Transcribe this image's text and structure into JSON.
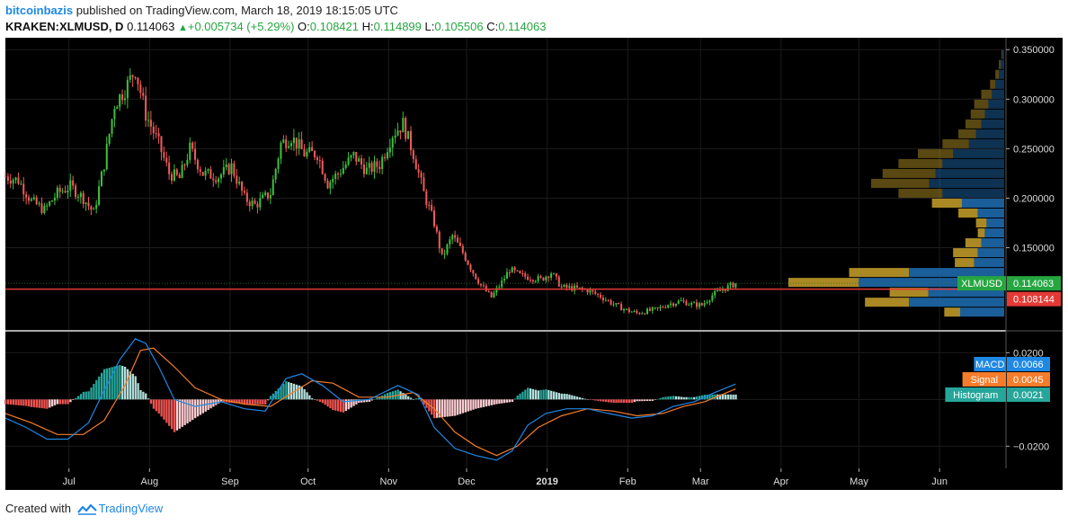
{
  "header": {
    "author": "bitcoinbazis",
    "published_text": "published on TradingView.com, March 18, 2019 18:15:05 UTC",
    "symbol": "KRAKEN:XLMUSD, D",
    "last": "0.114063",
    "change_arrow": "▲",
    "change": "+0.005734 (+5.29%)",
    "o_label": "O:",
    "o_value": "0.108421",
    "h_label": "H:",
    "h_value": "0.114899",
    "l_label": "L:",
    "l_value": "0.105506",
    "c_label": "C:",
    "c_value": "0.114063"
  },
  "footer": {
    "created_with": "Created with",
    "brand": "TradingView"
  },
  "colors": {
    "background": "#000000",
    "up": "#3fbf3f",
    "down": "#f05a5a",
    "macd_line": "#1e88e5",
    "signal_line": "#f57c2a",
    "hist_pos": "#26a69a",
    "hist_pos_light": "#b2dfdb",
    "hist_neg": "#ef5350",
    "hist_neg_light": "#ffcdd2",
    "vp_up": "#c8a02a",
    "vp_down": "#1f6fb5",
    "red_line": "#e53935",
    "price_tag": "#26a641"
  },
  "chart_data": {
    "type": "candlestick",
    "symbol": "KRAKEN:XLMUSD",
    "interval": "D",
    "x_axis": {
      "tick_labels": [
        "Jul",
        "Aug",
        "Sep",
        "Oct",
        "Nov",
        "Dec",
        "2019",
        "Feb",
        "Mar",
        "Apr",
        "May",
        "Jun"
      ],
      "range": [
        "2018-06-10",
        "2019-06-30"
      ]
    },
    "price_axis": {
      "ticks": [
        0.35,
        0.3,
        0.25,
        0.2,
        0.15
      ],
      "tick_labels": [
        "0.350000",
        "0.300000",
        "0.250000",
        "0.200000",
        "0.150000"
      ],
      "range": [
        0.067,
        0.362
      ]
    },
    "last_price_tag": {
      "label": "XLMUSD",
      "value": "0.114063",
      "price": 0.114063
    },
    "red_line_tag": {
      "value": "0.108144",
      "price": 0.108144
    },
    "price_path": {
      "description": "approximate daily close path",
      "points": [
        [
          "2018-06-10",
          0.222
        ],
        [
          "2018-06-15",
          0.218
        ],
        [
          "2018-06-20",
          0.197
        ],
        [
          "2018-06-25",
          0.188
        ],
        [
          "2018-06-30",
          0.205
        ],
        [
          "2018-07-05",
          0.212
        ],
        [
          "2018-07-10",
          0.2
        ],
        [
          "2018-07-14",
          0.185
        ],
        [
          "2018-07-18",
          0.235
        ],
        [
          "2018-07-22",
          0.295
        ],
        [
          "2018-07-26",
          0.31
        ],
        [
          "2018-07-30",
          0.33
        ],
        [
          "2018-08-03",
          0.285
        ],
        [
          "2018-08-08",
          0.255
        ],
        [
          "2018-08-12",
          0.225
        ],
        [
          "2018-08-16",
          0.22
        ],
        [
          "2018-08-20",
          0.25
        ],
        [
          "2018-08-25",
          0.225
        ],
        [
          "2018-08-31",
          0.222
        ],
        [
          "2018-09-05",
          0.232
        ],
        [
          "2018-09-10",
          0.2
        ],
        [
          "2018-09-14",
          0.193
        ],
        [
          "2018-09-20",
          0.205
        ],
        [
          "2018-09-24",
          0.255
        ],
        [
          "2018-09-28",
          0.262
        ],
        [
          "2018-10-03",
          0.245
        ],
        [
          "2018-10-08",
          0.245
        ],
        [
          "2018-10-12",
          0.215
        ],
        [
          "2018-10-16",
          0.225
        ],
        [
          "2018-10-22",
          0.243
        ],
        [
          "2018-10-27",
          0.228
        ],
        [
          "2018-11-01",
          0.234
        ],
        [
          "2018-11-06",
          0.265
        ],
        [
          "2018-11-10",
          0.275
        ],
        [
          "2018-11-14",
          0.245
        ],
        [
          "2018-11-18",
          0.205
        ],
        [
          "2018-11-22",
          0.175
        ],
        [
          "2018-11-25",
          0.14
        ],
        [
          "2018-11-29",
          0.162
        ],
        [
          "2018-12-03",
          0.145
        ],
        [
          "2018-12-07",
          0.125
        ],
        [
          "2018-12-10",
          0.112
        ],
        [
          "2018-12-14",
          0.1
        ],
        [
          "2018-12-18",
          0.115
        ],
        [
          "2018-12-21",
          0.128
        ],
        [
          "2018-12-25",
          0.122
        ],
        [
          "2018-12-29",
          0.12
        ],
        [
          "2019-01-02",
          0.118
        ],
        [
          "2019-01-06",
          0.125
        ],
        [
          "2019-01-10",
          0.11
        ],
        [
          "2019-01-15",
          0.109
        ],
        [
          "2019-01-20",
          0.107
        ],
        [
          "2019-01-25",
          0.101
        ],
        [
          "2019-01-30",
          0.093
        ],
        [
          "2019-02-04",
          0.087
        ],
        [
          "2019-02-08",
          0.084
        ],
        [
          "2019-02-12",
          0.086
        ],
        [
          "2019-02-16",
          0.088
        ],
        [
          "2019-02-20",
          0.093
        ],
        [
          "2019-02-25",
          0.096
        ],
        [
          "2019-03-01",
          0.093
        ],
        [
          "2019-03-05",
          0.092
        ],
        [
          "2019-03-09",
          0.102
        ],
        [
          "2019-03-13",
          0.108
        ],
        [
          "2019-03-18",
          0.114
        ]
      ]
    },
    "volume_profile": {
      "description": "approximate horizontal volume profile per price row (up / down share)",
      "rows": [
        {
          "price": 0.345,
          "up": 1,
          "down": 2
        },
        {
          "price": 0.335,
          "up": 2,
          "down": 4
        },
        {
          "price": 0.325,
          "up": 4,
          "down": 6
        },
        {
          "price": 0.315,
          "up": 6,
          "down": 10
        },
        {
          "price": 0.305,
          "up": 12,
          "down": 14
        },
        {
          "price": 0.295,
          "up": 16,
          "down": 18
        },
        {
          "price": 0.285,
          "up": 16,
          "down": 22
        },
        {
          "price": 0.275,
          "up": 18,
          "down": 26
        },
        {
          "price": 0.265,
          "up": 20,
          "down": 32
        },
        {
          "price": 0.255,
          "up": 30,
          "down": 40
        },
        {
          "price": 0.245,
          "up": 40,
          "down": 58
        },
        {
          "price": 0.235,
          "up": 50,
          "down": 70
        },
        {
          "price": 0.225,
          "up": 60,
          "down": 78
        },
        {
          "price": 0.215,
          "up": 66,
          "down": 85
        },
        {
          "price": 0.205,
          "up": 50,
          "down": 70
        },
        {
          "price": 0.195,
          "up": 34,
          "down": 48
        },
        {
          "price": 0.185,
          "up": 22,
          "down": 30
        },
        {
          "price": 0.175,
          "up": 12,
          "down": 20
        },
        {
          "price": 0.165,
          "up": 8,
          "down": 22
        },
        {
          "price": 0.155,
          "up": 18,
          "down": 26
        },
        {
          "price": 0.145,
          "up": 28,
          "down": 30
        },
        {
          "price": 0.135,
          "up": 22,
          "down": 34
        },
        {
          "price": 0.125,
          "up": 68,
          "down": 108
        },
        {
          "price": 0.115,
          "up": 80,
          "down": 165
        },
        {
          "price": 0.105,
          "up": 44,
          "down": 86
        },
        {
          "price": 0.095,
          "up": 50,
          "down": 108
        },
        {
          "price": 0.085,
          "up": 18,
          "down": 50
        }
      ]
    },
    "macd": {
      "labels": {
        "macd": "MACD",
        "signal": "Signal",
        "histogram": "Histogram"
      },
      "values": {
        "macd": "0.0066",
        "signal": "0.0045",
        "histogram": "0.0021"
      },
      "axis_ticks": [
        0.02,
        -0.02
      ],
      "axis_tick_labels": [
        "0.0200",
        "−0.0200"
      ],
      "range": [
        -0.0295,
        0.029
      ],
      "macd_path": [
        [
          "2018-06-10",
          -0.008
        ],
        [
          "2018-06-18",
          -0.012
        ],
        [
          "2018-06-26",
          -0.017
        ],
        [
          "2018-07-04",
          -0.017
        ],
        [
          "2018-07-12",
          -0.01
        ],
        [
          "2018-07-18",
          0.004
        ],
        [
          "2018-07-24",
          0.017
        ],
        [
          "2018-07-30",
          0.026
        ],
        [
          "2018-08-03",
          0.024
        ],
        [
          "2018-08-08",
          0.014
        ],
        [
          "2018-08-14",
          0.0
        ],
        [
          "2018-08-22",
          -0.003
        ],
        [
          "2018-09-01",
          -0.001
        ],
        [
          "2018-09-10",
          -0.004
        ],
        [
          "2018-09-18",
          -0.005
        ],
        [
          "2018-09-26",
          0.009
        ],
        [
          "2018-10-02",
          0.011
        ],
        [
          "2018-10-10",
          0.006
        ],
        [
          "2018-10-18",
          -0.001
        ],
        [
          "2018-10-28",
          0.0
        ],
        [
          "2018-11-08",
          0.006
        ],
        [
          "2018-11-16",
          0.002
        ],
        [
          "2018-11-22",
          -0.012
        ],
        [
          "2018-11-30",
          -0.021
        ],
        [
          "2018-12-08",
          -0.024
        ],
        [
          "2018-12-16",
          -0.026
        ],
        [
          "2018-12-22",
          -0.022
        ],
        [
          "2018-12-28",
          -0.011
        ],
        [
          "2019-01-04",
          -0.006
        ],
        [
          "2019-01-12",
          -0.004
        ],
        [
          "2019-01-20",
          -0.004
        ],
        [
          "2019-01-28",
          -0.006
        ],
        [
          "2019-02-06",
          -0.008
        ],
        [
          "2019-02-14",
          -0.007
        ],
        [
          "2019-02-22",
          -0.003
        ],
        [
          "2019-03-02",
          -0.001
        ],
        [
          "2019-03-10",
          0.003
        ],
        [
          "2019-03-18",
          0.0066
        ]
      ],
      "signal_path": [
        [
          "2018-06-10",
          -0.006
        ],
        [
          "2018-06-20",
          -0.01
        ],
        [
          "2018-06-30",
          -0.015
        ],
        [
          "2018-07-10",
          -0.015
        ],
        [
          "2018-07-18",
          -0.009
        ],
        [
          "2018-07-26",
          0.006
        ],
        [
          "2018-08-01",
          0.021
        ],
        [
          "2018-08-06",
          0.022
        ],
        [
          "2018-08-14",
          0.014
        ],
        [
          "2018-08-22",
          0.005
        ],
        [
          "2018-09-01",
          0.0
        ],
        [
          "2018-09-10",
          -0.002
        ],
        [
          "2018-09-20",
          -0.003
        ],
        [
          "2018-09-30",
          0.004
        ],
        [
          "2018-10-06",
          0.008
        ],
        [
          "2018-10-14",
          0.007
        ],
        [
          "2018-10-24",
          0.001
        ],
        [
          "2018-11-04",
          0.001
        ],
        [
          "2018-11-14",
          0.003
        ],
        [
          "2018-11-22",
          -0.004
        ],
        [
          "2018-11-30",
          -0.014
        ],
        [
          "2018-12-08",
          -0.02
        ],
        [
          "2018-12-16",
          -0.024
        ],
        [
          "2018-12-24",
          -0.02
        ],
        [
          "2019-01-01",
          -0.012
        ],
        [
          "2019-01-10",
          -0.007
        ],
        [
          "2019-01-20",
          -0.004
        ],
        [
          "2019-01-30",
          -0.005
        ],
        [
          "2019-02-08",
          -0.007
        ],
        [
          "2019-02-18",
          -0.006
        ],
        [
          "2019-02-26",
          -0.003
        ],
        [
          "2019-03-06",
          -0.001
        ],
        [
          "2019-03-18",
          0.0045
        ]
      ]
    }
  }
}
